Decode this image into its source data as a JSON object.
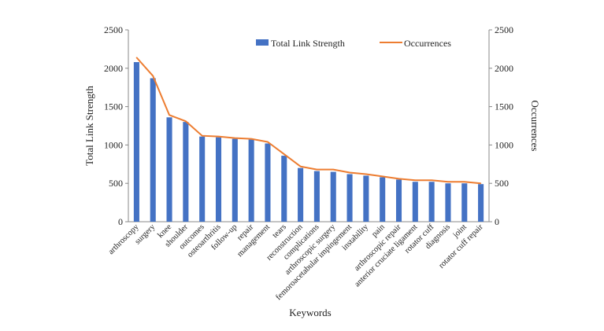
{
  "chart_data": {
    "type": "bar",
    "title": "",
    "xlabel": "Keywords",
    "ylabel": "Total Link Strength",
    "y2label": "Occurrences",
    "ylim": [
      0,
      2500
    ],
    "y2lim": [
      0,
      2500
    ],
    "yticks": [
      0,
      500,
      1000,
      1500,
      2000,
      2500
    ],
    "categories": [
      "arthroscopy",
      "surgery",
      "knee",
      "shoulder",
      "outcomes",
      "osteoarthritis",
      "follow-up",
      "repair",
      "management",
      "tears",
      "reconstruction",
      "complications",
      "arthroscopic surgery",
      "femoroacetabular impingement",
      "instability",
      "pain",
      "arthroscopic repair",
      "anterior cruciate ligament",
      "rotator cuff",
      "diagnosis",
      "joint",
      "rotator cuff repair"
    ],
    "series": [
      {
        "name": "Total Link Strength",
        "type": "bar",
        "axis": "left",
        "color": "#4472c4",
        "values": [
          2080,
          1870,
          1360,
          1300,
          1110,
          1100,
          1080,
          1070,
          1020,
          860,
          700,
          660,
          650,
          620,
          600,
          580,
          550,
          520,
          520,
          500,
          500,
          490
        ]
      },
      {
        "name": "Occurrences",
        "type": "line",
        "axis": "right",
        "color": "#ed7d31",
        "values": [
          2140,
          1900,
          1390,
          1310,
          1120,
          1110,
          1090,
          1080,
          1040,
          880,
          720,
          680,
          680,
          640,
          620,
          590,
          560,
          540,
          540,
          520,
          520,
          500
        ]
      }
    ],
    "legend": "top-center"
  }
}
